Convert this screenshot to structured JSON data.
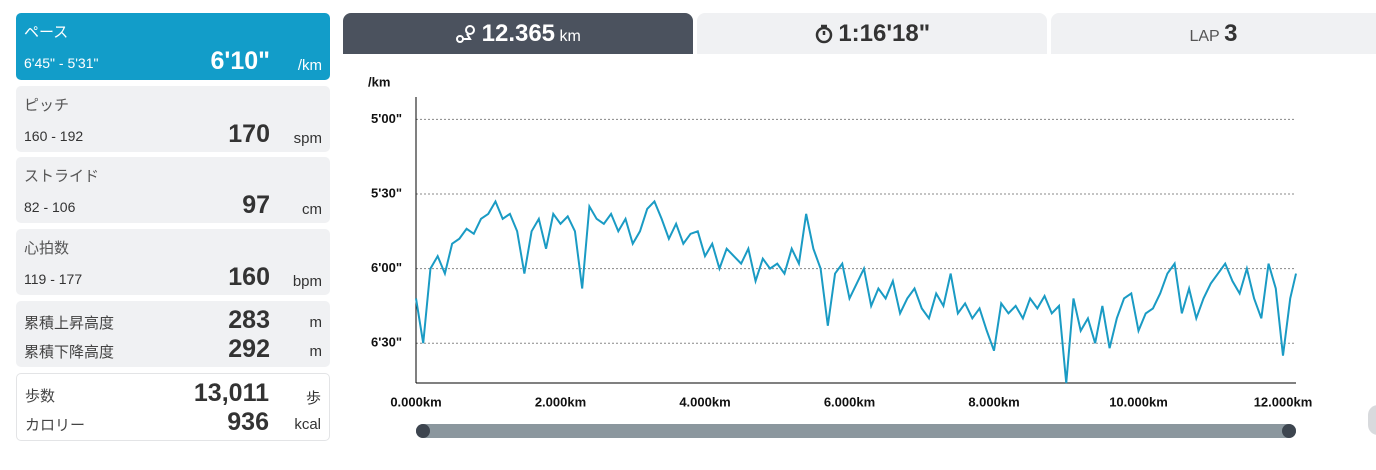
{
  "metrics": [
    {
      "label": "ペース",
      "range": "6'45\" - 5'31\"",
      "value": "6'10\"",
      "unit": "/km"
    },
    {
      "label": "ピッチ",
      "range": "160 - 192",
      "value": "170",
      "unit": "spm"
    },
    {
      "label": "ストライド",
      "range": "82 - 106",
      "value": "97",
      "unit": "cm"
    },
    {
      "label": "心拍数",
      "range": "119 - 177",
      "value": "160",
      "unit": "bpm"
    }
  ],
  "elevation": [
    {
      "label": "累積上昇高度",
      "value": "283",
      "unit": "m"
    },
    {
      "label": "累積下降高度",
      "value": "292",
      "unit": "m"
    }
  ],
  "totals": [
    {
      "label": "歩数",
      "value": "13,011",
      "unit": "歩"
    },
    {
      "label": "カロリー",
      "value": "936",
      "unit": "kcal"
    }
  ],
  "tabs": {
    "distance": "12.365",
    "distance_unit": "km",
    "time": "1:16'18\"",
    "lap_label": "LAP",
    "lap": "3"
  },
  "chart_data": {
    "type": "line",
    "y_label": "/km",
    "color": "#1a9bc4",
    "grid": true,
    "ylim": [
      406,
      291
    ],
    "yticks": [
      {
        "value": 300,
        "label": "5'00\""
      },
      {
        "value": 330,
        "label": "5'30\""
      },
      {
        "value": 360,
        "label": "6'00\""
      },
      {
        "value": 390,
        "label": "6'30\""
      }
    ],
    "xlim": [
      0,
      12.18
    ],
    "xticks": [
      {
        "value": 0,
        "label": "0.000km"
      },
      {
        "value": 2,
        "label": "2.000km"
      },
      {
        "value": 4,
        "label": "4.000km"
      },
      {
        "value": 6,
        "label": "6.000km"
      },
      {
        "value": 8,
        "label": "8.000km"
      },
      {
        "value": 10,
        "label": "10.000km"
      },
      {
        "value": 12,
        "label": "12.000km"
      }
    ],
    "x": [
      0,
      0.1,
      0.2,
      0.3,
      0.4,
      0.5,
      0.6,
      0.7,
      0.8,
      0.9,
      1,
      1.1,
      1.2,
      1.3,
      1.4,
      1.5,
      1.6,
      1.7,
      1.8,
      1.9,
      2,
      2.1,
      2.2,
      2.3,
      2.4,
      2.5,
      2.6,
      2.7,
      2.8,
      2.9,
      3,
      3.1,
      3.2,
      3.3,
      3.4,
      3.5,
      3.6,
      3.7,
      3.8,
      3.9,
      4,
      4.1,
      4.2,
      4.3,
      4.4,
      4.5,
      4.6,
      4.7,
      4.8,
      4.9,
      5,
      5.1,
      5.2,
      5.3,
      5.4,
      5.5,
      5.6,
      5.7,
      5.8,
      5.9,
      6,
      6.1,
      6.2,
      6.3,
      6.4,
      6.5,
      6.6,
      6.7,
      6.8,
      6.9,
      7,
      7.1,
      7.2,
      7.3,
      7.4,
      7.5,
      7.6,
      7.7,
      7.8,
      7.9,
      8,
      8.1,
      8.2,
      8.3,
      8.4,
      8.5,
      8.6,
      8.7,
      8.8,
      8.9,
      9,
      9.1,
      9.2,
      9.3,
      9.4,
      9.5,
      9.6,
      9.7,
      9.8,
      9.9,
      10,
      10.1,
      10.2,
      10.3,
      10.4,
      10.5,
      10.6,
      10.7,
      10.8,
      10.9,
      11,
      11.1,
      11.2,
      11.3,
      11.4,
      11.5,
      11.6,
      11.7,
      11.8,
      11.9,
      12,
      12.1,
      12.18
    ],
    "values": [
      372,
      390,
      360,
      355,
      362,
      350,
      348,
      344,
      346,
      340,
      338,
      333,
      340,
      338,
      345,
      362,
      345,
      340,
      352,
      338,
      342,
      339,
      345,
      368,
      335,
      340,
      342,
      338,
      345,
      340,
      350,
      345,
      336,
      333,
      340,
      348,
      342,
      350,
      346,
      345,
      355,
      350,
      360,
      352,
      355,
      358,
      352,
      365,
      356,
      360,
      358,
      362,
      352,
      358,
      338,
      352,
      360,
      383,
      362,
      358,
      372,
      366,
      360,
      375,
      368,
      372,
      365,
      378,
      372,
      368,
      376,
      380,
      370,
      375,
      362,
      378,
      374,
      380,
      376,
      385,
      393,
      374,
      378,
      375,
      380,
      372,
      376,
      371,
      378,
      375,
      406,
      372,
      385,
      380,
      390,
      375,
      392,
      380,
      372,
      370,
      385,
      378,
      376,
      370,
      362,
      358,
      378,
      368,
      380,
      372,
      366,
      362,
      358,
      365,
      370,
      360,
      372,
      380,
      358,
      368,
      395,
      372,
      362
    ]
  }
}
